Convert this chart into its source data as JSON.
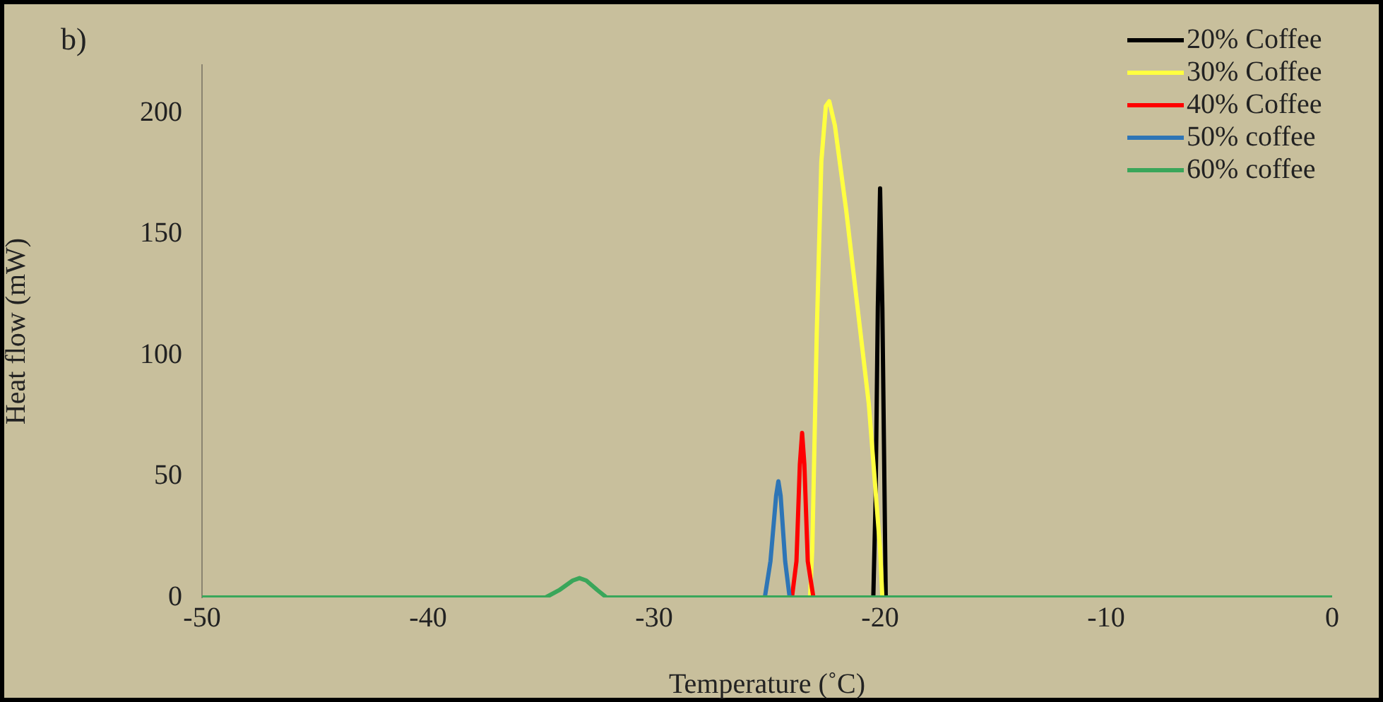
{
  "chart_data": {
    "type": "line",
    "xlabel": "Temperature (˚C)",
    "ylabel": "Heat flow (mW)",
    "annotations": [
      "b)"
    ],
    "xlim": [
      -50,
      0
    ],
    "xticks": [
      -50,
      -40,
      -30,
      -20,
      -10,
      0
    ],
    "ylim": [
      0,
      220
    ],
    "yticks": [
      0,
      50,
      100,
      150,
      200
    ],
    "grid": false,
    "legend": "top right",
    "series": [
      {
        "name": "20% Coffee",
        "color": "#000000",
        "x": [
          -20.3,
          -20.2,
          -20.1,
          -20.0,
          -19.9,
          -19.8,
          -19.75
        ],
        "values": [
          0,
          40,
          120,
          169,
          120,
          40,
          0
        ]
      },
      {
        "name": "30% Coffee",
        "color": "#ffff40",
        "x": [
          -23.1,
          -23.0,
          -22.8,
          -22.6,
          -22.4,
          -22.25,
          -22.0,
          -21.5,
          -21.0,
          -20.5,
          -20.0,
          -19.9
        ],
        "values": [
          0,
          20,
          110,
          180,
          203,
          205,
          195,
          160,
          120,
          80,
          20,
          0
        ]
      },
      {
        "name": "40% Coffee",
        "color": "#ff0000",
        "x": [
          -23.9,
          -23.7,
          -23.55,
          -23.45,
          -23.35,
          -23.2,
          -22.95
        ],
        "values": [
          0,
          15,
          55,
          68,
          55,
          15,
          0
        ]
      },
      {
        "name": "50% coffee",
        "color": "#2e75b6",
        "x": [
          -25.1,
          -24.85,
          -24.6,
          -24.5,
          -24.4,
          -24.2,
          -24.0
        ],
        "values": [
          0,
          15,
          42,
          48,
          42,
          15,
          0
        ]
      },
      {
        "name": "60% coffee",
        "color": "#3aa65a",
        "x": [
          -50,
          -34.8,
          -34.2,
          -33.6,
          -33.3,
          -33.0,
          -32.5,
          -32.1,
          0
        ],
        "values": [
          0,
          0,
          3,
          7,
          8,
          7,
          3,
          0,
          0
        ]
      }
    ]
  }
}
